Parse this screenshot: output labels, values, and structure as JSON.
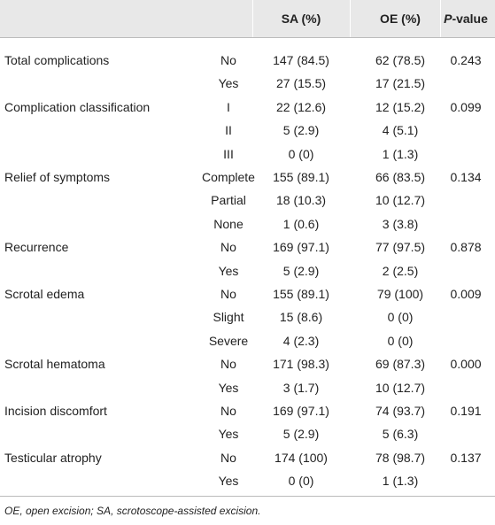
{
  "table": {
    "headers": [
      "SA (%)",
      "OE (%)"
    ],
    "p_header": {
      "italic": "P",
      "rest": "-value"
    },
    "groups": [
      {
        "label": "Total complications",
        "p": "0.243",
        "levels": [
          {
            "level": "No",
            "sa": "147 (84.5)",
            "oe": "62 (78.5)"
          },
          {
            "level": "Yes",
            "sa": "27 (15.5)",
            "oe": "17 (21.5)"
          }
        ]
      },
      {
        "label": "Complication classification",
        "p": "0.099",
        "levels": [
          {
            "level": "I",
            "sa": "22 (12.6)",
            "oe": "12 (15.2)"
          },
          {
            "level": "II",
            "sa": "5 (2.9)",
            "oe": "4 (5.1)"
          },
          {
            "level": "III",
            "sa": "0 (0)",
            "oe": "1 (1.3)"
          }
        ]
      },
      {
        "label": "Relief of symptoms",
        "p": "0.134",
        "levels": [
          {
            "level": "Complete",
            "sa": "155 (89.1)",
            "oe": "66 (83.5)"
          },
          {
            "level": "Partial",
            "sa": "18 (10.3)",
            "oe": "10 (12.7)"
          },
          {
            "level": "None",
            "sa": "1 (0.6)",
            "oe": "3 (3.8)"
          }
        ]
      },
      {
        "label": "Recurrence",
        "p": "0.878",
        "levels": [
          {
            "level": "No",
            "sa": "169 (97.1)",
            "oe": "77 (97.5)"
          },
          {
            "level": "Yes",
            "sa": "5 (2.9)",
            "oe": "2 (2.5)"
          }
        ]
      },
      {
        "label": "Scrotal edema",
        "p": "0.009",
        "levels": [
          {
            "level": "No",
            "sa": "155 (89.1)",
            "oe": "79 (100)"
          },
          {
            "level": "Slight",
            "sa": "15 (8.6)",
            "oe": "0 (0)"
          },
          {
            "level": "Severe",
            "sa": "4 (2.3)",
            "oe": "0 (0)"
          }
        ]
      },
      {
        "label": "Scrotal hematoma",
        "p": "0.000",
        "levels": [
          {
            "level": "No",
            "sa": "171 (98.3)",
            "oe": "69 (87.3)"
          },
          {
            "level": "Yes",
            "sa": "3 (1.7)",
            "oe": "10 (12.7)"
          }
        ]
      },
      {
        "label": "Incision discomfort",
        "p": "0.191",
        "levels": [
          {
            "level": "No",
            "sa": "169 (97.1)",
            "oe": "74 (93.7)"
          },
          {
            "level": "Yes",
            "sa": "5 (2.9)",
            "oe": "5 (6.3)"
          }
        ]
      },
      {
        "label": "Testicular atrophy",
        "p": "0.137",
        "levels": [
          {
            "level": "No",
            "sa": "174 (100)",
            "oe": "78 (98.7)"
          },
          {
            "level": "Yes",
            "sa": "0 (0)",
            "oe": "1 (1.3)"
          }
        ]
      }
    ]
  },
  "footnote": "OE, open excision; SA, scrotoscope-assisted excision."
}
